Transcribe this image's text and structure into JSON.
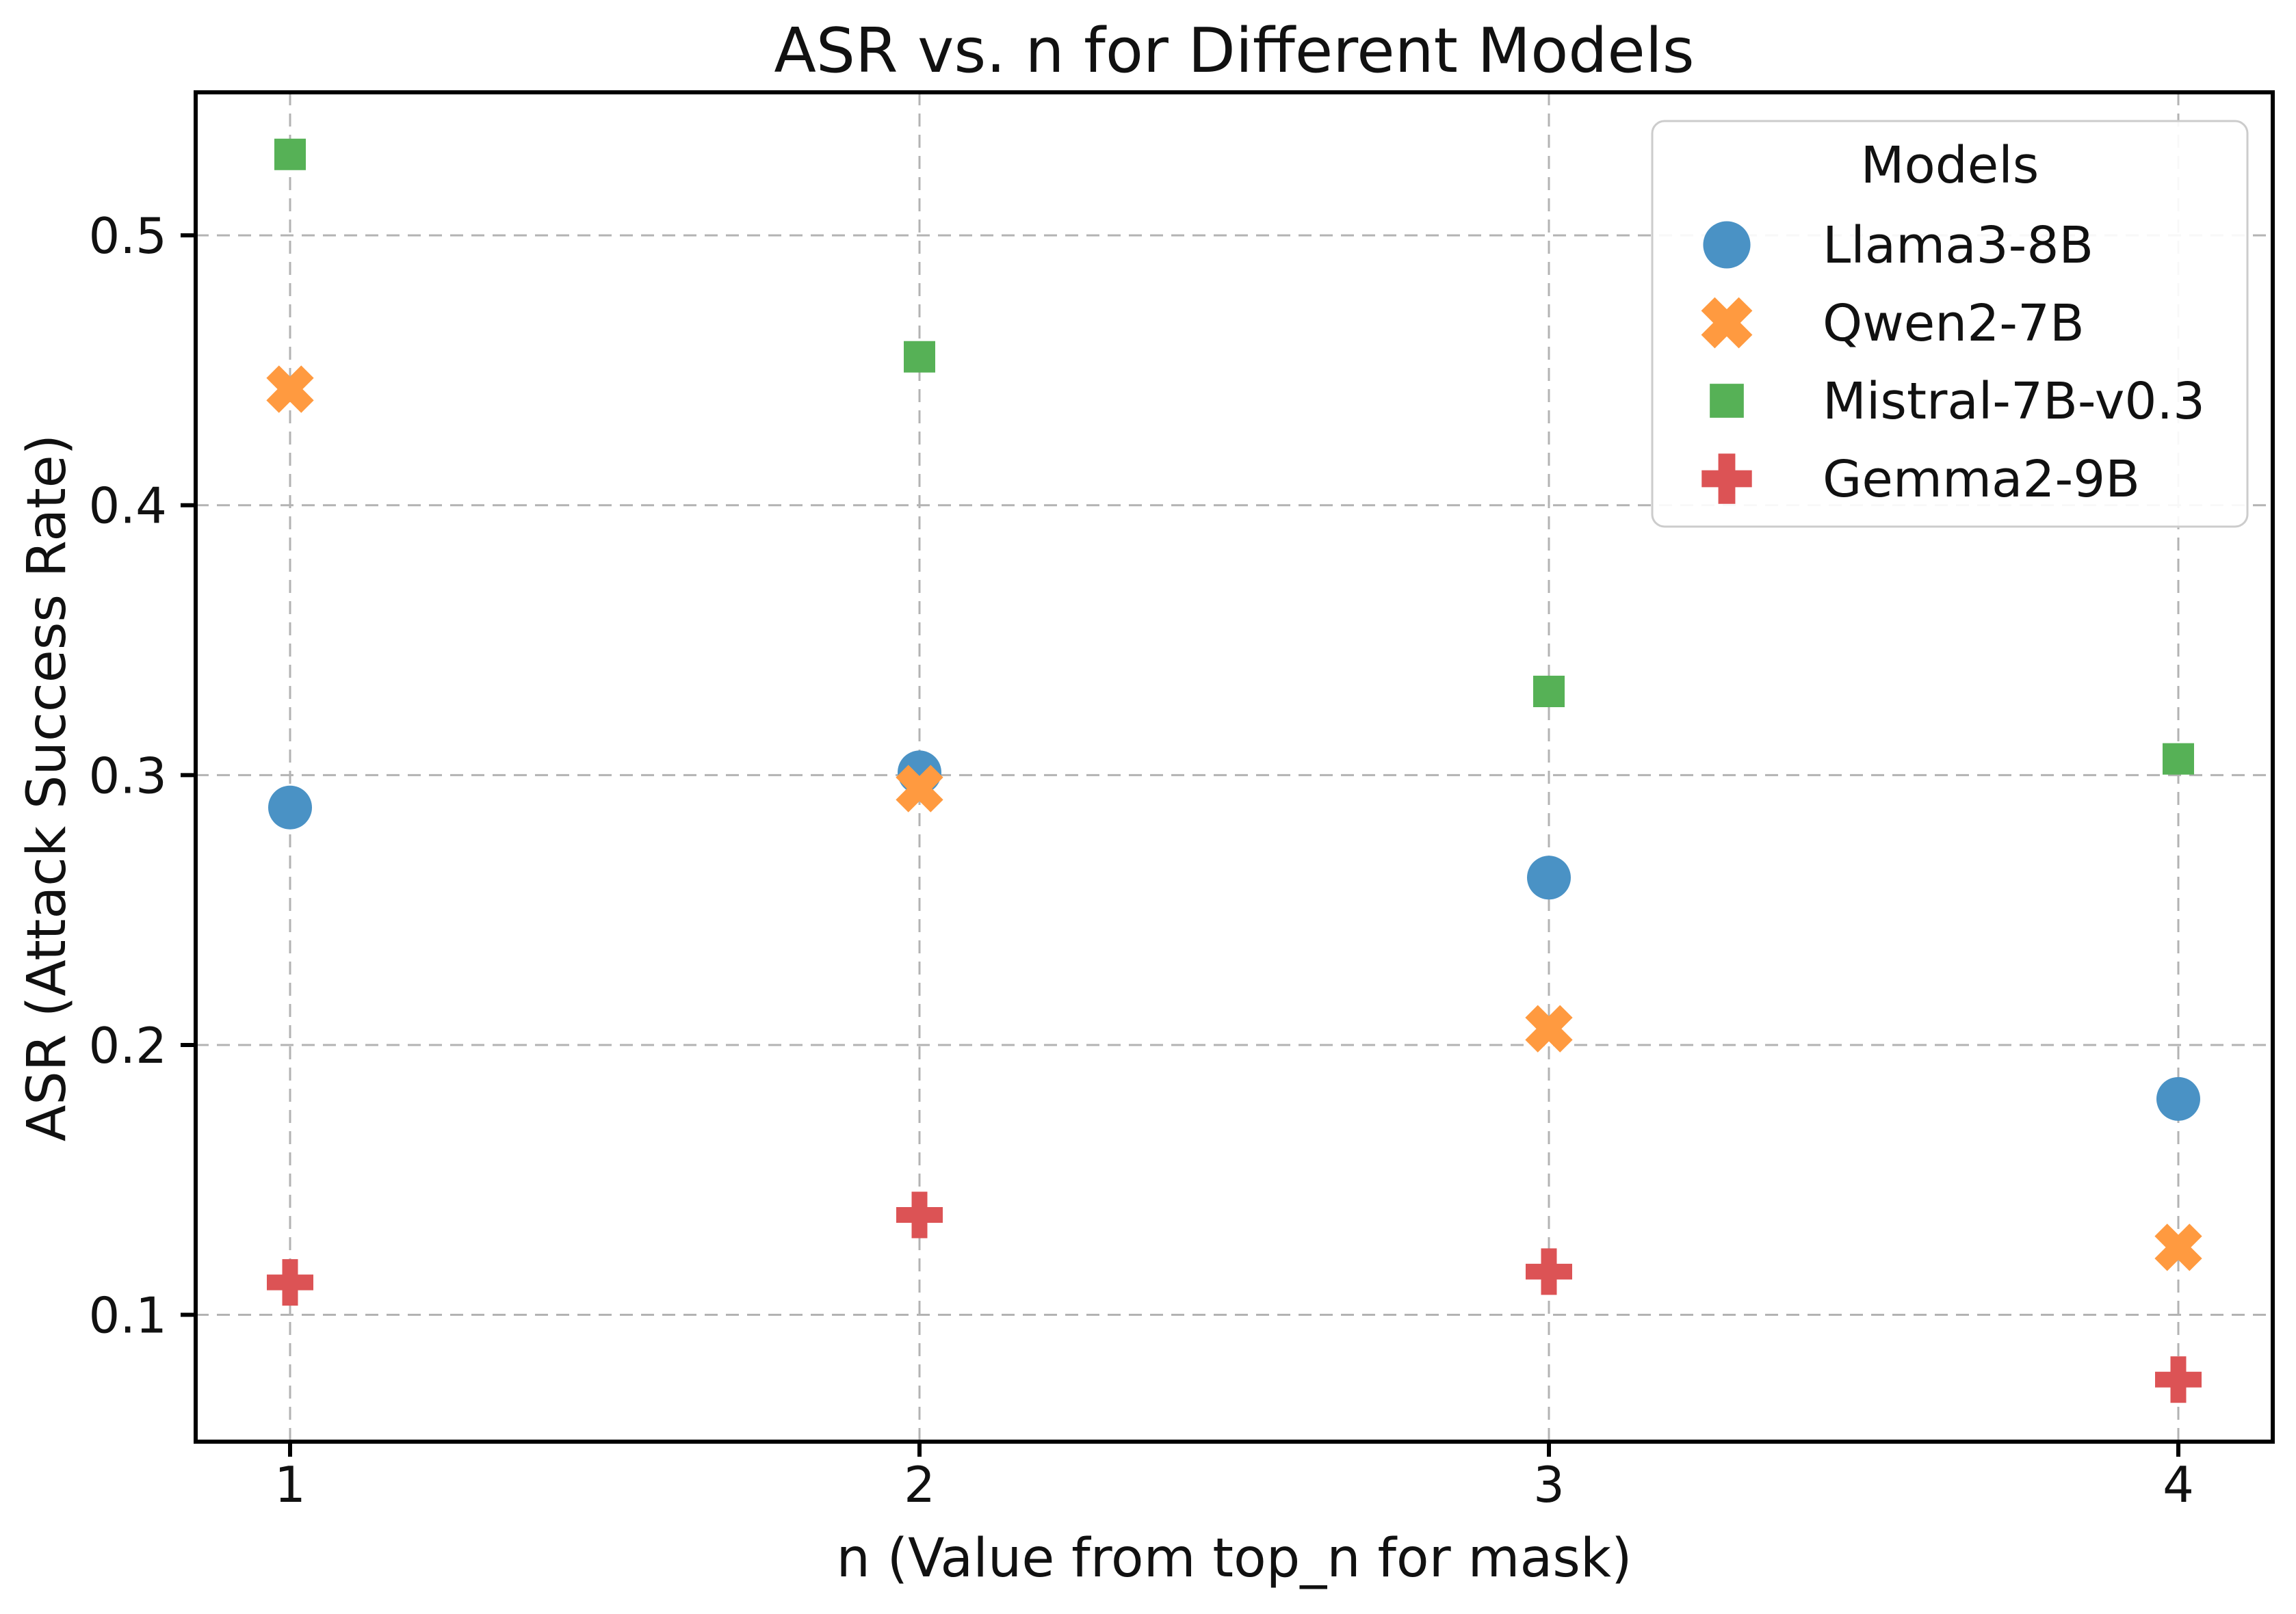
{
  "chart_data": {
    "type": "scatter",
    "title": "ASR vs. n for Different Models",
    "xlabel": "n (Value from top_n for mask)",
    "ylabel": "ASR (Attack Success Rate)",
    "x": [
      1,
      2,
      3,
      4
    ],
    "xticks": [
      1,
      2,
      3,
      4
    ],
    "xtick_labels": [
      "1",
      "2",
      "3",
      "4"
    ],
    "yticks": [
      0.1,
      0.2,
      0.3,
      0.4,
      0.5
    ],
    "ytick_labels": [
      "0.1",
      "0.2",
      "0.3",
      "0.4",
      "0.5"
    ],
    "xlim": [
      0.85,
      4.15
    ],
    "ylim": [
      0.053,
      0.553
    ],
    "grid": true,
    "grid_color": "#b3b3b3",
    "axis_color": "#000000",
    "legend": {
      "title": "Models",
      "position": "upper right"
    },
    "series": [
      {
        "name": "Llama3-8B",
        "marker": "circle",
        "color": "#4a92c5",
        "values": [
          0.288,
          0.301,
          0.262,
          0.18
        ]
      },
      {
        "name": "Qwen2-7B",
        "marker": "x",
        "color": "#ff9a40",
        "values": [
          0.443,
          0.295,
          0.206,
          0.125
        ]
      },
      {
        "name": "Mistral-7B-v0.3",
        "marker": "square",
        "color": "#56b156",
        "values": [
          0.53,
          0.455,
          0.331,
          0.306
        ]
      },
      {
        "name": "Gemma2-9B",
        "marker": "plus",
        "color": "#dc5355",
        "values": [
          0.112,
          0.137,
          0.116,
          0.076
        ]
      }
    ]
  }
}
